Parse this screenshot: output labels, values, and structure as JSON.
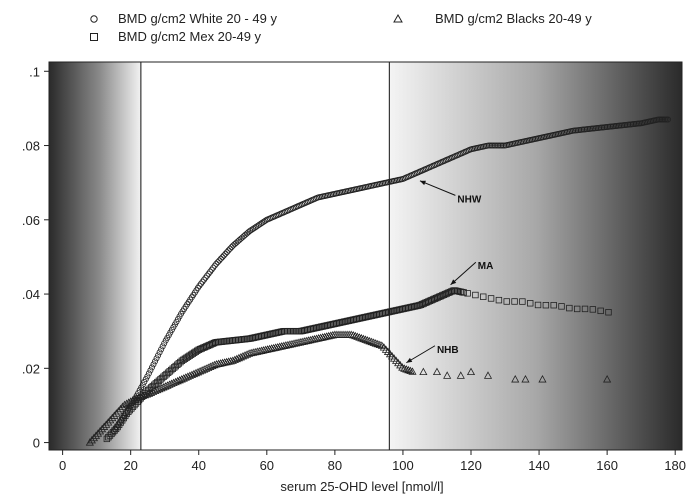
{
  "chart_data": {
    "type": "scatter",
    "title": "",
    "xlabel": "serum 25-OHD level [nmol/l]",
    "ylabel": "",
    "xlim": [
      -4,
      182
    ],
    "ylim": [
      -0.002,
      0.1025
    ],
    "x_ticks": [
      0,
      20,
      40,
      60,
      80,
      100,
      120,
      140,
      160,
      180
    ],
    "y_ticks": [
      0,
      0.02,
      0.04,
      0.06,
      0.08,
      0.1
    ],
    "x_tick_labels": [
      "0",
      "20",
      "40",
      "60",
      "80",
      "100",
      "120",
      "140",
      "160",
      "180"
    ],
    "y_tick_labels": [
      "0",
      ".02",
      ".04",
      ".06",
      ".08",
      ".1"
    ],
    "grid": false,
    "legend_position": "top",
    "reference_lines_x": [
      23,
      96
    ],
    "shaded_regions": [
      {
        "from": -4,
        "to": 23,
        "gradient": "dark-to-light"
      },
      {
        "from": 96,
        "to": 182,
        "gradient": "light-to-dark"
      }
    ],
    "series": [
      {
        "name": "BMD g/cm2 White 20 - 49 y",
        "marker": "circle",
        "annotation": "NHW",
        "annotation_at": [
          105,
          0.069
        ],
        "x_range": [
          15,
          178
        ],
        "points": [
          [
            15,
            0.003
          ],
          [
            18,
            0.007
          ],
          [
            20,
            0.01
          ],
          [
            22,
            0.013
          ],
          [
            25,
            0.018
          ],
          [
            30,
            0.027
          ],
          [
            35,
            0.035
          ],
          [
            40,
            0.042
          ],
          [
            45,
            0.048
          ],
          [
            50,
            0.053
          ],
          [
            55,
            0.057
          ],
          [
            60,
            0.06
          ],
          [
            65,
            0.062
          ],
          [
            70,
            0.064
          ],
          [
            75,
            0.066
          ],
          [
            80,
            0.067
          ],
          [
            85,
            0.068
          ],
          [
            90,
            0.069
          ],
          [
            95,
            0.07
          ],
          [
            100,
            0.071
          ],
          [
            105,
            0.073
          ],
          [
            110,
            0.075
          ],
          [
            115,
            0.077
          ],
          [
            120,
            0.079
          ],
          [
            125,
            0.08
          ],
          [
            130,
            0.08
          ],
          [
            135,
            0.081
          ],
          [
            140,
            0.082
          ],
          [
            145,
            0.083
          ],
          [
            150,
            0.084
          ],
          [
            155,
            0.0845
          ],
          [
            160,
            0.085
          ],
          [
            165,
            0.0855
          ],
          [
            170,
            0.086
          ],
          [
            175,
            0.087
          ],
          [
            178,
            0.087
          ]
        ]
      },
      {
        "name": "BMD g/cm2 Mex 20-49 y",
        "marker": "square",
        "annotation": "MA",
        "annotation_at": [
          118,
          0.042
        ],
        "x_range": [
          13,
          161
        ],
        "points": [
          [
            13,
            0.001
          ],
          [
            16,
            0.004
          ],
          [
            19,
            0.008
          ],
          [
            22,
            0.011
          ],
          [
            25,
            0.014
          ],
          [
            30,
            0.018
          ],
          [
            35,
            0.022
          ],
          [
            40,
            0.025
          ],
          [
            45,
            0.027
          ],
          [
            50,
            0.0275
          ],
          [
            55,
            0.028
          ],
          [
            60,
            0.029
          ],
          [
            65,
            0.03
          ],
          [
            70,
            0.03
          ],
          [
            75,
            0.031
          ],
          [
            80,
            0.032
          ],
          [
            85,
            0.033
          ],
          [
            90,
            0.034
          ],
          [
            95,
            0.035
          ],
          [
            100,
            0.036
          ],
          [
            105,
            0.037
          ],
          [
            110,
            0.039
          ],
          [
            115,
            0.041
          ],
          [
            120,
            0.04
          ],
          [
            125,
            0.039
          ],
          [
            130,
            0.038
          ],
          [
            135,
            0.038
          ],
          [
            140,
            0.037
          ],
          [
            145,
            0.037
          ],
          [
            150,
            0.036
          ],
          [
            155,
            0.036
          ],
          [
            161,
            0.035
          ]
        ]
      },
      {
        "name": "BMD g/cm2 Blacks 20-49 y",
        "marker": "triangle",
        "annotation": "NHB",
        "annotation_at": [
          106,
          0.022
        ],
        "x_range": [
          8,
          160
        ],
        "points": [
          [
            8,
            0.0
          ],
          [
            12,
            0.004
          ],
          [
            15,
            0.007
          ],
          [
            18,
            0.01
          ],
          [
            22,
            0.012
          ],
          [
            25,
            0.013
          ],
          [
            30,
            0.015
          ],
          [
            35,
            0.017
          ],
          [
            40,
            0.019
          ],
          [
            45,
            0.021
          ],
          [
            50,
            0.022
          ],
          [
            55,
            0.024
          ],
          [
            60,
            0.025
          ],
          [
            65,
            0.026
          ],
          [
            70,
            0.027
          ],
          [
            75,
            0.028
          ],
          [
            80,
            0.029
          ],
          [
            85,
            0.029
          ],
          [
            88,
            0.028
          ],
          [
            91,
            0.027
          ],
          [
            94,
            0.026
          ],
          [
            96,
            0.024
          ],
          [
            98,
            0.022
          ],
          [
            100,
            0.02
          ],
          [
            103,
            0.019
          ],
          [
            106,
            0.019
          ],
          [
            110,
            0.019
          ],
          [
            113,
            0.018
          ],
          [
            117,
            0.018
          ],
          [
            120,
            0.019
          ],
          [
            125,
            0.018
          ],
          [
            133,
            0.017
          ],
          [
            136,
            0.017
          ],
          [
            141,
            0.017
          ],
          [
            160,
            0.017
          ]
        ]
      }
    ]
  },
  "style": {
    "white_color": "#222222",
    "mex_color": "#222222",
    "black_color": "#222222",
    "shade_dark": "#2a2a2a",
    "shade_light": "#f2f2f2"
  }
}
